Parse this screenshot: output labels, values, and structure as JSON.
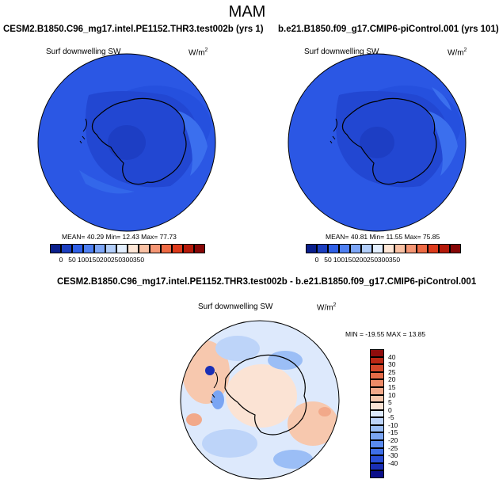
{
  "figure_title": "MAM",
  "top_left": {
    "case": "CESM2.B1850.C96_mg17.intel.PE1152.THR3.test002b (yrs 1)",
    "variable": "Surf downwelling SW",
    "units": "W/m",
    "units_sup": "2",
    "stats": "MEAN=  40.29  Min=  12.43  Max=  77.73"
  },
  "top_right": {
    "case": "b.e21.B1850.f09_g17.CMIP6-piControl.001 (yrs 101)",
    "variable": "Surf downwelling SW",
    "units": "W/m",
    "units_sup": "2",
    "stats": "MEAN=  40.81  Min=  11.55  Max=  75.85"
  },
  "bottom": {
    "case": "CESM2.B1850.C96_mg17.intel.PE1152.THR3.test002b - b.e21.B1850.f09_g17.CMIP6-piControl.001",
    "variable": "Surf downwelling SW",
    "units": "W/m",
    "units_sup": "2",
    "stats": "MIN = -19.55 MAX =  13.85"
  },
  "abs_colorbar": {
    "colors": [
      "#0a1f8c",
      "#1c3fbf",
      "#3060e6",
      "#4f80f2",
      "#7da6f7",
      "#b1cdf9",
      "#e2eefd",
      "#fde6d6",
      "#f9c1a4",
      "#f59674",
      "#ee6a44",
      "#dd3b1c",
      "#b51a0a",
      "#860606"
    ],
    "labels": [
      "0",
      "50",
      "100",
      "150",
      "200",
      "250",
      "300",
      "350"
    ]
  },
  "diff_colorbar": {
    "colors": [
      "#0b0f8a",
      "#1a2fb5",
      "#2a4fd6",
      "#3f6fe8",
      "#5a8bef",
      "#7aa5f3",
      "#9bbef6",
      "#bdd4f9",
      "#dde9fc",
      "#fbe3d4",
      "#f7c8ae",
      "#f2a98a",
      "#ec8a67",
      "#e36a47",
      "#d4472a",
      "#bb2815",
      "#8f0c0c"
    ],
    "labels": [
      "40",
      "30",
      "25",
      "20",
      "15",
      "10",
      "5",
      "0",
      "-5",
      "-10",
      "-15",
      "-20",
      "-25",
      "-30",
      "-40"
    ]
  }
}
